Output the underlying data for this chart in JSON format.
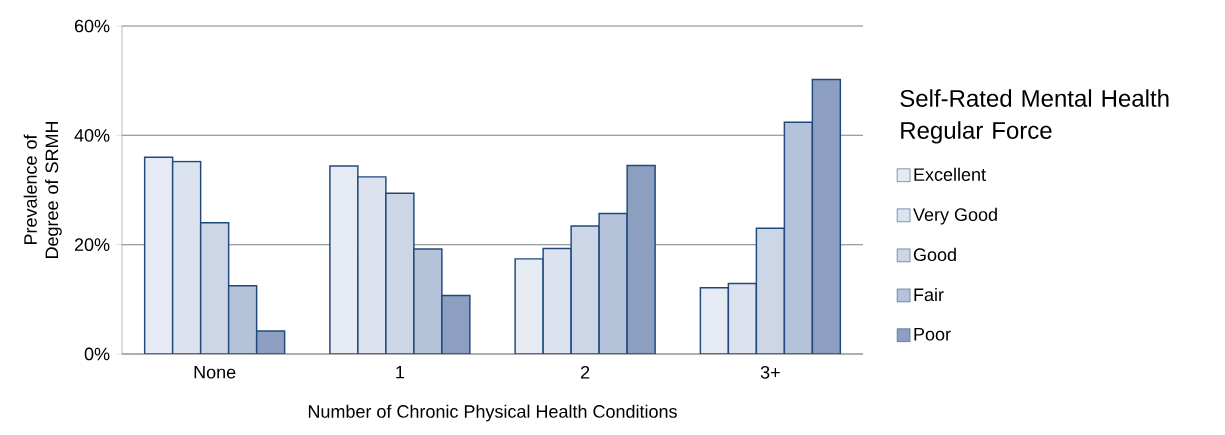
{
  "chart_data": {
    "type": "bar",
    "xlabel": "Number of Chronic Physical Health Conditions",
    "ylabel": "Prevalence of Degree of SRMH",
    "legend_title": "Self-Rated Mental Health Regular Force",
    "categories": [
      "None",
      "1",
      "2",
      "3+"
    ],
    "series": [
      {
        "name": "Excellent",
        "color": "#e6ebf3",
        "values": [
          36.0,
          34.4,
          17.4,
          12.1
        ]
      },
      {
        "name": "Very Good",
        "color": "#dce3ee",
        "values": [
          35.2,
          32.4,
          19.3,
          12.9
        ]
      },
      {
        "name": "Good",
        "color": "#cdd6e6",
        "values": [
          24.0,
          29.4,
          23.4,
          23.0
        ]
      },
      {
        "name": "Fair",
        "color": "#b5c3da",
        "values": [
          12.5,
          19.2,
          25.7,
          42.4
        ]
      },
      {
        "name": "Poor",
        "color": "#8d9fc0",
        "values": [
          4.2,
          10.7,
          34.5,
          50.2
        ]
      }
    ],
    "ylim": [
      0,
      60
    ],
    "yticks": [
      {
        "value": 0,
        "label": "0%"
      },
      {
        "value": 20,
        "label": "20%"
      },
      {
        "value": 40,
        "label": "40%"
      },
      {
        "value": 60,
        "label": "60%"
      }
    ],
    "grid": "y",
    "legend": "right"
  }
}
